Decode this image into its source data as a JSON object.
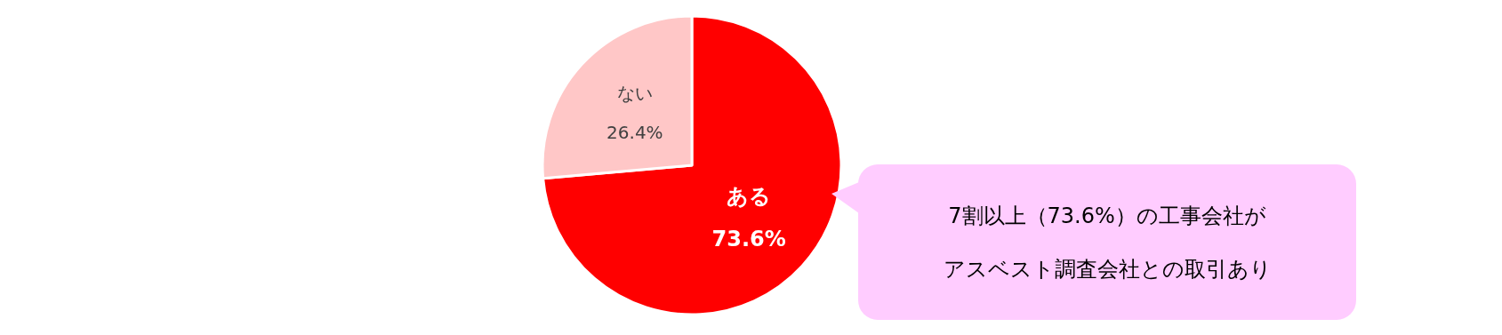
{
  "chart_data": {
    "type": "pie",
    "categories": [
      "ある",
      "ない"
    ],
    "values": [
      73.6,
      26.4
    ],
    "value_labels": [
      "73.6%",
      "26.4%"
    ],
    "colors": [
      "#ff0000",
      "#ffc7c7"
    ],
    "legend": false,
    "annotations": [
      "7割以上（73.6%）の工事会社が",
      "アスベスト調査会社との取引あり"
    ]
  }
}
